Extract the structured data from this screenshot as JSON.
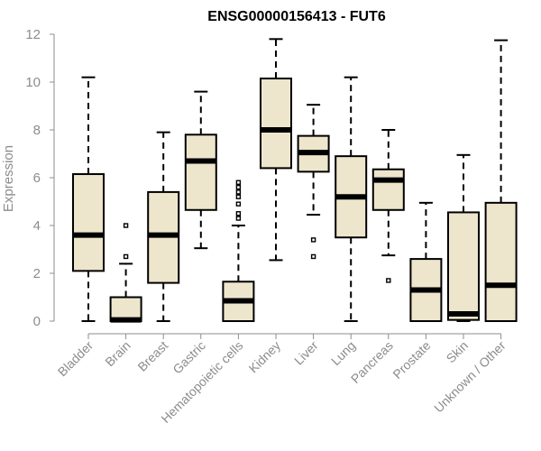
{
  "chart_data": {
    "type": "boxplot",
    "title": "ENSG00000156413 - FUT6",
    "ylabel": "Expression",
    "xlabel": "",
    "ylim": [
      0,
      12
    ],
    "yticks": [
      "0",
      "2",
      "4",
      "6",
      "8",
      "10",
      "12"
    ],
    "box_fill": "#ede6cc",
    "categories": [
      "Bladder",
      "Brain",
      "Breast",
      "Gastric",
      "Hematopoietic cells",
      "Kidney",
      "Liver",
      "Lung",
      "Pancreas",
      "Prostate",
      "Skin",
      "Unknown / Other"
    ],
    "boxes": [
      {
        "category": "Bladder",
        "min": 0,
        "q1": 2.1,
        "median": 3.6,
        "q3": 6.15,
        "max": 10.2,
        "outliers": []
      },
      {
        "category": "Brain",
        "min": 0,
        "q1": 0,
        "median": 0.05,
        "q3": 1.0,
        "max": 2.4,
        "outliers": [
          2.7,
          4.0
        ]
      },
      {
        "category": "Breast",
        "min": 0,
        "q1": 1.6,
        "median": 3.6,
        "q3": 5.4,
        "max": 7.9,
        "outliers": []
      },
      {
        "category": "Gastric",
        "min": 3.05,
        "q1": 4.65,
        "median": 6.7,
        "q3": 7.8,
        "max": 9.6,
        "outliers": []
      },
      {
        "category": "Hematopoietic cells",
        "min": 0,
        "q1": 0,
        "median": 0.85,
        "q3": 1.65,
        "max": 4.0,
        "outliers": [
          4.3,
          4.5,
          4.9,
          5.2,
          5.4,
          5.6,
          5.8
        ]
      },
      {
        "category": "Kidney",
        "min": 2.55,
        "q1": 6.4,
        "median": 8.0,
        "q3": 10.15,
        "max": 11.8,
        "outliers": []
      },
      {
        "category": "Liver",
        "min": 4.45,
        "q1": 6.25,
        "median": 7.05,
        "q3": 7.75,
        "max": 9.05,
        "outliers": [
          3.4,
          2.7
        ]
      },
      {
        "category": "Lung",
        "min": 0,
        "q1": 3.5,
        "median": 5.2,
        "q3": 6.9,
        "max": 10.2,
        "outliers": []
      },
      {
        "category": "Pancreas",
        "min": 2.75,
        "q1": 4.65,
        "median": 5.9,
        "q3": 6.35,
        "max": 8.0,
        "outliers": [
          1.7
        ]
      },
      {
        "category": "Prostate",
        "min": 0,
        "q1": 0,
        "median": 1.3,
        "q3": 2.6,
        "max": 4.95,
        "outliers": []
      },
      {
        "category": "Skin",
        "min": 0,
        "q1": 0.05,
        "median": 0.3,
        "q3": 4.55,
        "max": 6.95,
        "outliers": []
      },
      {
        "category": "Unknown / Other",
        "min": 0,
        "q1": 0,
        "median": 1.5,
        "q3": 4.95,
        "max": 11.75,
        "outliers": []
      }
    ]
  }
}
